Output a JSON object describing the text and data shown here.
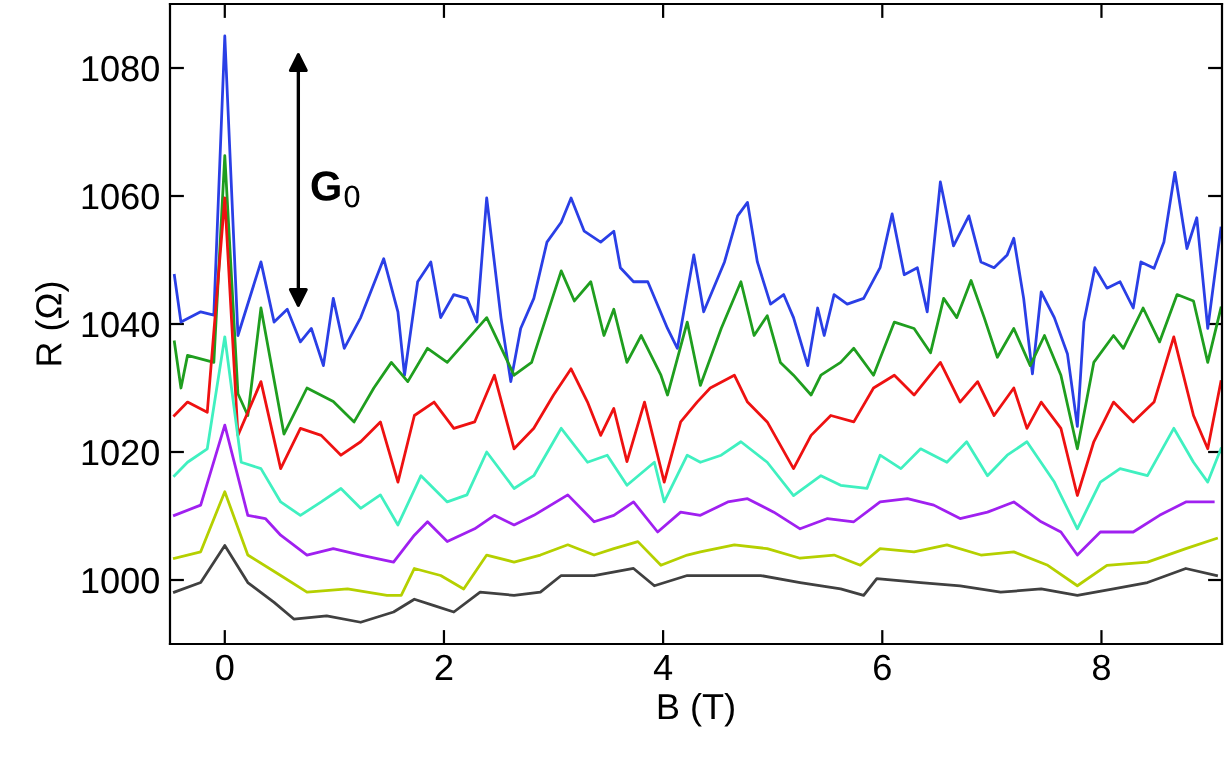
{
  "chart_data": {
    "type": "line",
    "xlabel": "B (T)",
    "ylabel": "R (Ω)",
    "xlim": [
      -0.5,
      9.1
    ],
    "ylim": [
      990,
      1090
    ],
    "xticks": [
      0,
      2,
      4,
      6,
      8
    ],
    "yticks": [
      1000,
      1020,
      1040,
      1060,
      1080
    ],
    "annotations": [
      "G$_{0}$"
    ],
    "series": [
      {
        "color": "#2a3fe6",
        "x": [
          -0.46,
          -0.4,
          -0.22,
          -0.1,
          0,
          0.12,
          0.33,
          0.45,
          0.57,
          0.69,
          0.79,
          0.9,
          0.99,
          1.09,
          1.24,
          1.45,
          1.58,
          1.64,
          1.76,
          1.88,
          1.97,
          2.09,
          2.21,
          2.3,
          2.39,
          2.52,
          2.61,
          2.7,
          2.82,
          2.94,
          3.07,
          3.16,
          3.28,
          3.43,
          3.55,
          3.61,
          3.73,
          3.86,
          4.04,
          4.13,
          4.28,
          4.37,
          4.56,
          4.68,
          4.77,
          4.86,
          4.98,
          5.1,
          5.19,
          5.32,
          5.41,
          5.47,
          5.56,
          5.68,
          5.83,
          5.98,
          6.09,
          6.2,
          6.32,
          6.41,
          6.53,
          6.65,
          6.79,
          6.9,
          7.02,
          7.14,
          7.2,
          7.29,
          7.37,
          7.45,
          7.57,
          7.69,
          7.78,
          7.84,
          7.94,
          8.05,
          8.17,
          8.29,
          8.36,
          8.48,
          8.57,
          8.67,
          8.78,
          8.87,
          8.97,
          9.09
        ],
        "values": [
          1047.6,
          1040.3,
          1041.9,
          1041.4,
          1085,
          1038.2,
          1049.7,
          1040.3,
          1042.3,
          1037.2,
          1039.3,
          1033.5,
          1044,
          1036.2,
          1041,
          1050.2,
          1041.9,
          1032,
          1046.6,
          1049.7,
          1041,
          1044.6,
          1044,
          1040.3,
          1059.7,
          1041,
          1031,
          1039.3,
          1044,
          1052.8,
          1055.9,
          1059.7,
          1054.5,
          1052.8,
          1054.5,
          1048.8,
          1046.6,
          1046.6,
          1039.3,
          1036.2,
          1050.8,
          1041.9,
          1049.7,
          1056.9,
          1059,
          1049.7,
          1043.1,
          1044.6,
          1041,
          1033.5,
          1042.5,
          1038.2,
          1044.6,
          1043.1,
          1044,
          1048.8,
          1057.2,
          1047.7,
          1048.8,
          1041.9,
          1062.2,
          1052.2,
          1056.9,
          1049.7,
          1048.8,
          1050.8,
          1053.4,
          1044,
          1032.2,
          1045,
          1041,
          1035.3,
          1024,
          1040.3,
          1048.8,
          1045.6,
          1046.6,
          1042.5,
          1049.7,
          1048.7,
          1052.8,
          1063.7,
          1051.8,
          1056.6,
          1039.3,
          1055
        ]
      },
      {
        "color": "#1f9e1f",
        "x": [
          -0.46,
          -0.4,
          -0.34,
          -0.1,
          0,
          0.12,
          0.21,
          0.33,
          0.54,
          0.75,
          0.99,
          1.18,
          1.36,
          1.52,
          1.67,
          1.85,
          2.03,
          2.39,
          2.64,
          2.8,
          3.07,
          3.19,
          3.34,
          3.46,
          3.55,
          3.67,
          3.8,
          3.98,
          4.04,
          4.22,
          4.34,
          4.53,
          4.71,
          4.83,
          4.95,
          5.07,
          5.19,
          5.35,
          5.44,
          5.62,
          5.74,
          5.92,
          6.11,
          6.29,
          6.44,
          6.56,
          6.68,
          6.81,
          6.93,
          7.05,
          7.2,
          7.35,
          7.48,
          7.63,
          7.78,
          7.93,
          8.11,
          8.2,
          8.38,
          8.53,
          8.69,
          8.84,
          8.97,
          9.09
        ],
        "values": [
          1037.2,
          1030,
          1035.1,
          1034,
          1066.3,
          1029.1,
          1025.7,
          1042.5,
          1022.8,
          1030,
          1027.9,
          1024.7,
          1030,
          1034,
          1031,
          1036.2,
          1034,
          1041,
          1032,
          1034,
          1048.3,
          1043.6,
          1046.6,
          1038.2,
          1042.3,
          1034,
          1038.2,
          1032,
          1028.9,
          1040.3,
          1030.4,
          1039.3,
          1046.6,
          1038.2,
          1041.3,
          1034,
          1032,
          1028.9,
          1032,
          1034,
          1036.2,
          1032,
          1040.3,
          1039.3,
          1035.5,
          1044,
          1041,
          1046.8,
          1041,
          1034.8,
          1039.3,
          1033.5,
          1038.2,
          1032,
          1020.5,
          1034,
          1038.2,
          1036.2,
          1042.5,
          1037.2,
          1044.6,
          1043.6,
          1034,
          1042.5
        ]
      },
      {
        "color": "#ee1111",
        "x": [
          -0.46,
          -0.34,
          -0.16,
          0,
          0.12,
          0.33,
          0.51,
          0.69,
          0.88,
          1.06,
          1.24,
          1.42,
          1.58,
          1.73,
          1.91,
          2.09,
          2.28,
          2.46,
          2.64,
          2.82,
          3,
          3.16,
          3.31,
          3.43,
          3.55,
          3.67,
          3.83,
          4.01,
          4.16,
          4.31,
          4.43,
          4.65,
          4.77,
          4.95,
          5.19,
          5.35,
          5.53,
          5.74,
          5.92,
          6.11,
          6.29,
          6.53,
          6.71,
          6.87,
          7.02,
          7.2,
          7.32,
          7.45,
          7.63,
          7.78,
          7.93,
          8.11,
          8.29,
          8.48,
          8.66,
          8.84,
          8.97,
          9.09
        ],
        "values": [
          1025.7,
          1027.8,
          1026.2,
          1059.7,
          1022.6,
          1031,
          1017.4,
          1023.7,
          1022.6,
          1019.5,
          1021.6,
          1024.7,
          1015.3,
          1025.7,
          1027.8,
          1023.7,
          1024.7,
          1032,
          1020.5,
          1023.7,
          1028.9,
          1033,
          1027.8,
          1022.6,
          1026.8,
          1018.5,
          1027.8,
          1015.3,
          1024.7,
          1027.8,
          1030,
          1032,
          1027.8,
          1024.7,
          1017.4,
          1022.6,
          1025.7,
          1024.7,
          1030,
          1032,
          1028.9,
          1034,
          1027.8,
          1031,
          1025.7,
          1030,
          1023.7,
          1027.8,
          1023.7,
          1013.2,
          1021.6,
          1027.8,
          1024.7,
          1027.8,
          1038,
          1025.7,
          1020.5,
          1031
        ]
      },
      {
        "color": "#40f0c0",
        "x": [
          -0.46,
          -0.34,
          -0.16,
          0,
          0.15,
          0.33,
          0.51,
          0.69,
          0.88,
          1.06,
          1.24,
          1.42,
          1.58,
          1.79,
          2.03,
          2.21,
          2.39,
          2.64,
          2.82,
          3.07,
          3.31,
          3.49,
          3.67,
          3.92,
          4.01,
          4.22,
          4.34,
          4.53,
          4.71,
          4.95,
          5.19,
          5.44,
          5.62,
          5.86,
          5.98,
          6.17,
          6.35,
          6.59,
          6.77,
          6.96,
          7.14,
          7.32,
          7.57,
          7.78,
          7.99,
          8.17,
          8.42,
          8.66,
          8.84,
          8.97,
          9.09
        ],
        "values": [
          1016.3,
          1018.4,
          1020.5,
          1038,
          1018.4,
          1017.4,
          1012.2,
          1010.1,
          1012.2,
          1014.3,
          1011.2,
          1013.3,
          1008.6,
          1016.3,
          1012.2,
          1013.3,
          1020,
          1014.3,
          1016.3,
          1023.7,
          1018.4,
          1019.5,
          1014.8,
          1018.4,
          1012.2,
          1019.5,
          1018.4,
          1019.5,
          1021.6,
          1018.4,
          1013.2,
          1016.3,
          1014.8,
          1014.3,
          1019.5,
          1017.4,
          1020.5,
          1018.4,
          1021.6,
          1016.3,
          1019.5,
          1021.6,
          1015.3,
          1008,
          1015.3,
          1017.4,
          1016.3,
          1023.7,
          1018.4,
          1015.3,
          1020.5
        ]
      },
      {
        "color": "#a020f0",
        "x": [
          -0.46,
          -0.22,
          0,
          0.21,
          0.37,
          0.51,
          0.75,
          0.99,
          1.24,
          1.54,
          1.73,
          1.85,
          2.03,
          2.28,
          2.46,
          2.64,
          2.82,
          3.13,
          3.37,
          3.55,
          3.73,
          3.95,
          4.16,
          4.34,
          4.59,
          4.77,
          5.01,
          5.25,
          5.5,
          5.74,
          5.98,
          6.23,
          6.47,
          6.71,
          6.96,
          7.2,
          7.45,
          7.63,
          7.78,
          7.99,
          8.29,
          8.53,
          8.77,
          9.02
        ],
        "values": [
          1010.1,
          1011.7,
          1024.2,
          1010.1,
          1009.6,
          1007,
          1003.9,
          1004.9,
          1003.9,
          1002.8,
          1007,
          1009.1,
          1006,
          1008,
          1010.1,
          1008.6,
          1010.1,
          1013.3,
          1009.1,
          1010.1,
          1012.2,
          1007.5,
          1010.6,
          1010.1,
          1012.2,
          1012.7,
          1010.6,
          1008,
          1009.6,
          1009.1,
          1012.2,
          1012.7,
          1011.7,
          1009.6,
          1010.6,
          1012.2,
          1009.1,
          1007.5,
          1003.9,
          1007.5,
          1007.5,
          1010.1,
          1012.2,
          1012.2
        ]
      },
      {
        "color": "#b5d000",
        "x": [
          -0.46,
          -0.22,
          0,
          0.21,
          0.51,
          0.75,
          1.12,
          1.48,
          1.61,
          1.73,
          1.97,
          2.18,
          2.39,
          2.64,
          2.88,
          3.13,
          3.37,
          3.55,
          3.77,
          3.98,
          4.22,
          4.34,
          4.65,
          4.95,
          5.25,
          5.56,
          5.8,
          5.98,
          6.29,
          6.59,
          6.9,
          7.2,
          7.51,
          7.78,
          8.05,
          8.42,
          8.77,
          9.05
        ],
        "values": [
          1003.4,
          1004.4,
          1013.8,
          1003.9,
          1000.7,
          998.1,
          998.6,
          997.6,
          997.6,
          1001.8,
          1000.7,
          998.6,
          1003.9,
          1002.8,
          1003.9,
          1005.5,
          1003.9,
          1004.9,
          1006,
          1002.3,
          1003.9,
          1004.4,
          1005.5,
          1004.9,
          1003.4,
          1003.9,
          1002.3,
          1004.9,
          1004.4,
          1005.5,
          1003.9,
          1004.4,
          1002.3,
          999.1,
          1002.3,
          1002.8,
          1004.9,
          1006.5
        ]
      },
      {
        "color": "#404040",
        "x": [
          -0.46,
          -0.22,
          0,
          0.21,
          0.45,
          0.63,
          0.93,
          1.24,
          1.54,
          1.73,
          1.91,
          2.09,
          2.33,
          2.64,
          2.88,
          3.07,
          3.37,
          3.73,
          3.92,
          4.22,
          4.46,
          4.89,
          5.25,
          5.62,
          5.83,
          5.95,
          6.35,
          6.71,
          7.08,
          7.45,
          7.78,
          8.11,
          8.42,
          8.77,
          9.05
        ],
        "values": [
          998.1,
          999.6,
          1005.4,
          999.6,
          996.5,
          993.9,
          994.4,
          993.4,
          995,
          997,
          996,
          995,
          998.1,
          997.6,
          998.1,
          1000.7,
          1000.7,
          1001.8,
          999.1,
          1000.7,
          1000.7,
          1000.7,
          999.6,
          998.6,
          997.6,
          1000.2,
          999.6,
          999.1,
          998.1,
          998.6,
          997.6,
          998.6,
          999.6,
          1001.8,
          1000.7
        ]
      }
    ]
  }
}
